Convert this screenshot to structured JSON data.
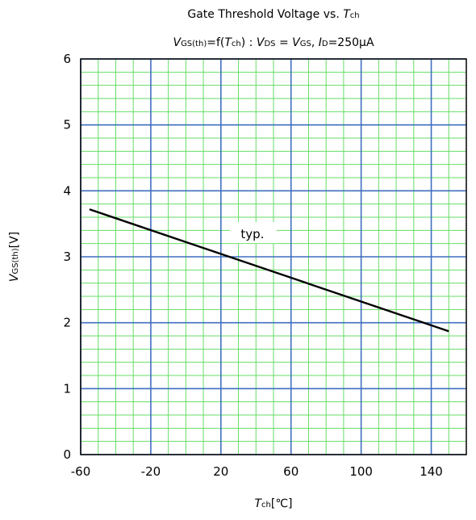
{
  "chart_data": {
    "type": "line",
    "title": "Gate Threshold Voltage vs. Tch",
    "title_parts": {
      "text": "Gate Threshold Voltage vs. ",
      "var": "T",
      "sub": "ch"
    },
    "subtitle": "VGS(th)=f(Tch) : VDS = VGS, ID=250μA",
    "subtitle_parts": [
      {
        "t": "V",
        "style": "italic"
      },
      {
        "t": "GS(th)",
        "style": "sub"
      },
      {
        "t": "=f(",
        "style": "normal"
      },
      {
        "t": "T",
        "style": "italic"
      },
      {
        "t": "ch",
        "style": "sub"
      },
      {
        "t": ") : ",
        "style": "normal"
      },
      {
        "t": "V",
        "style": "italic"
      },
      {
        "t": "DS",
        "style": "sub"
      },
      {
        "t": " = ",
        "style": "normal"
      },
      {
        "t": "V",
        "style": "italic"
      },
      {
        "t": "GS",
        "style": "sub"
      },
      {
        "t": ", ",
        "style": "normal"
      },
      {
        "t": "I",
        "style": "italic"
      },
      {
        "t": "D",
        "style": "sub"
      },
      {
        "t": "=250μA",
        "style": "normal"
      }
    ],
    "xlabel": "Tch[℃]",
    "xlabel_parts": {
      "var": "T",
      "sub": "ch",
      "unit": "[℃]"
    },
    "ylabel": "VGS(th)[V]",
    "ylabel_parts": {
      "var": "V",
      "sub": "GS(th)",
      "unit": "[V]"
    },
    "xlim": [
      -60,
      160
    ],
    "ylim": [
      0,
      6
    ],
    "x_ticks": [
      -60,
      -20,
      20,
      60,
      100,
      140
    ],
    "x_tick_labels": [
      "-60",
      "-20",
      "20",
      "60",
      "100",
      "140"
    ],
    "y_ticks": [
      0,
      1,
      2,
      3,
      4,
      5,
      6
    ],
    "y_tick_labels": [
      "0",
      "1",
      "2",
      "3",
      "4",
      "5",
      "6"
    ],
    "grid": true,
    "colors": {
      "major_grid": "#3f6fbf",
      "minor_grid": "#66dd66",
      "series": "#000000"
    },
    "series": [
      {
        "name": "typ.",
        "x": [
          -55,
          150
        ],
        "y": [
          3.72,
          1.87
        ]
      }
    ],
    "annotations": [
      {
        "text": "typ.",
        "x": 38,
        "y": 3.28
      }
    ]
  }
}
